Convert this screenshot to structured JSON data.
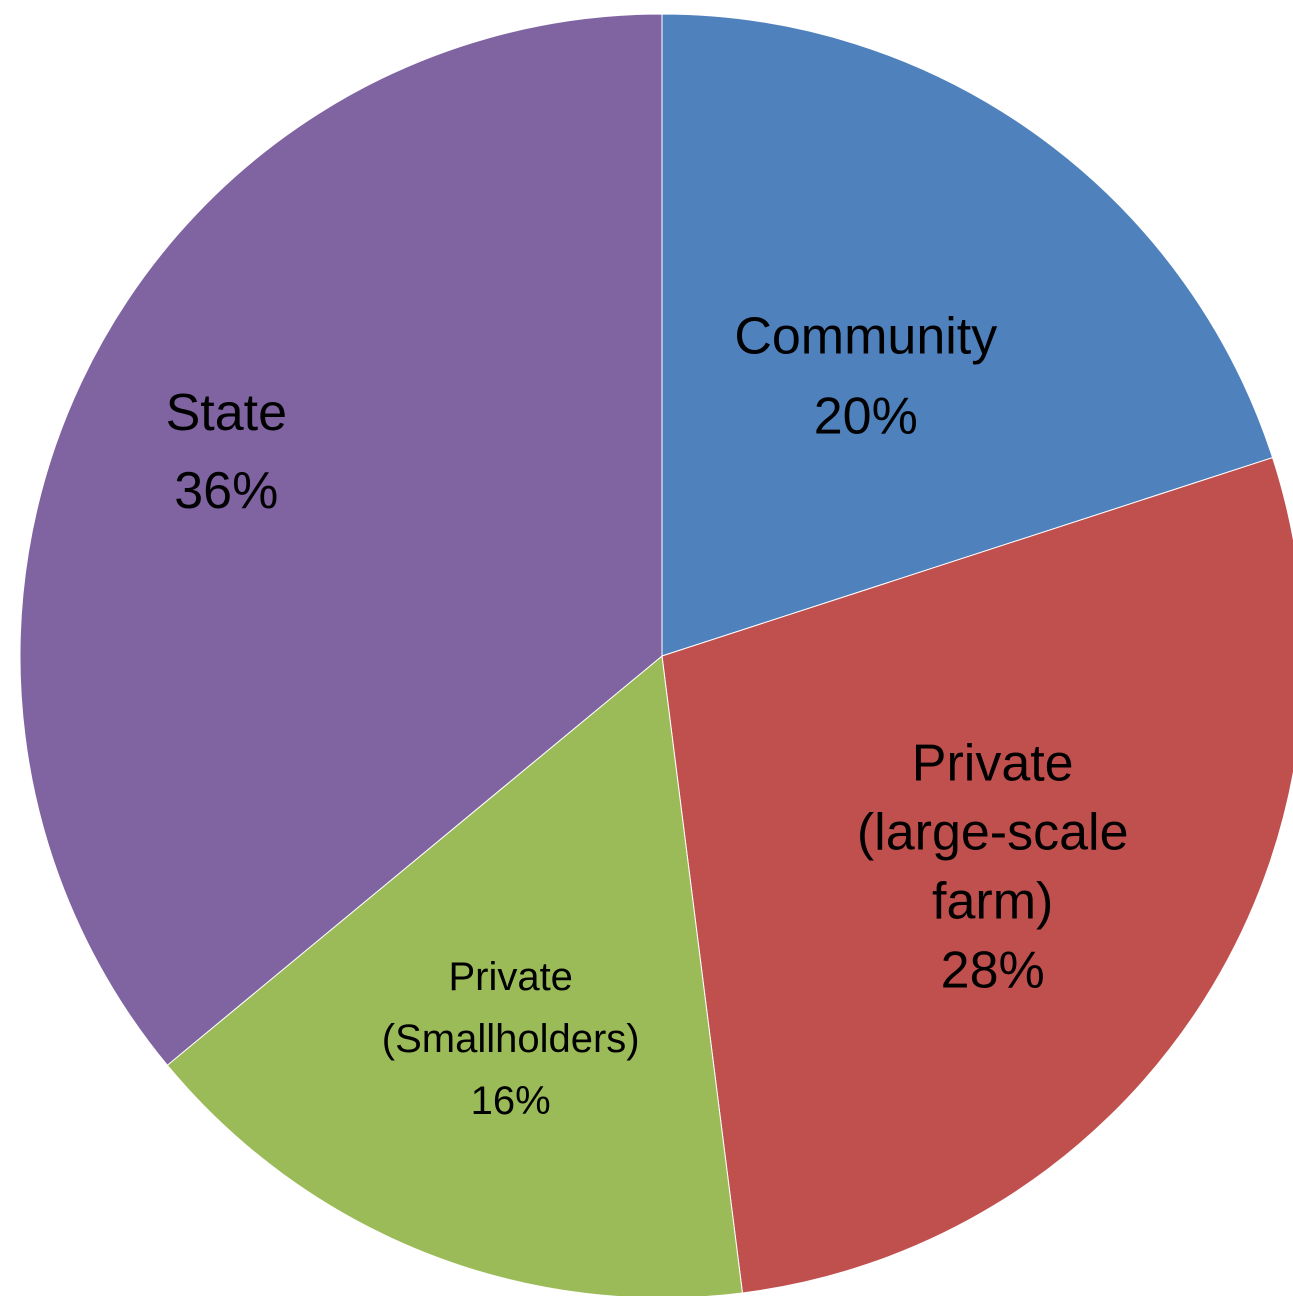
{
  "chart_data": {
    "type": "pie",
    "slices": [
      {
        "label_lines": [
          "Community",
          "20%"
        ],
        "value": 20,
        "color": "#4F81BD"
      },
      {
        "label_lines": [
          "Private",
          "(large-scale",
          "farm)",
          "28%"
        ],
        "value": 28,
        "color": "#C0504D"
      },
      {
        "label_lines": [
          "Private",
          "(Smallholders)",
          "16%"
        ],
        "value": 16,
        "color": "#9BBB59"
      },
      {
        "label_lines": [
          "State",
          "36%"
        ],
        "value": 36,
        "color": "#8064A2"
      }
    ]
  }
}
